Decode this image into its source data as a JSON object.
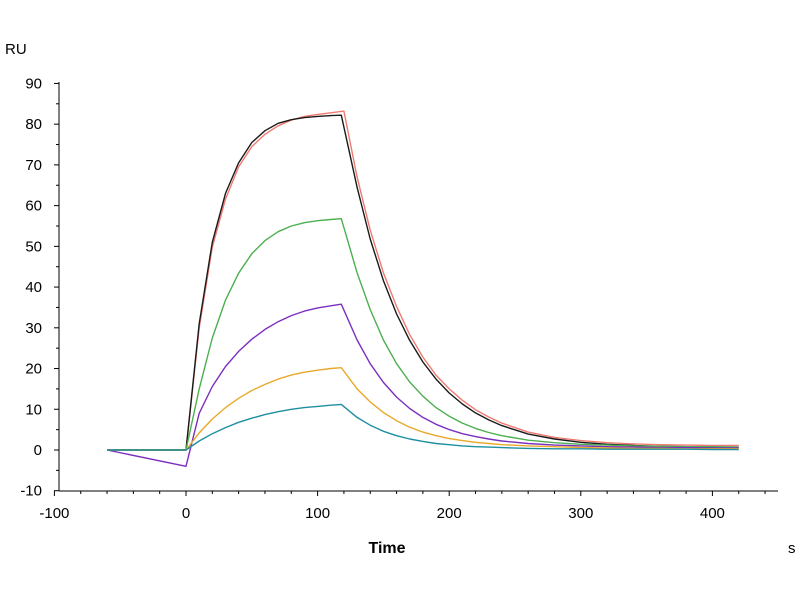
{
  "chart_data": {
    "type": "line",
    "title": "",
    "xlabel": "Time",
    "x_unit": "s",
    "ylabel": "RU",
    "xlim": [
      -100,
      420
    ],
    "ylim": [
      -10,
      90
    ],
    "x_ticks": [
      -100,
      0,
      100,
      200,
      300,
      400
    ],
    "y_ticks": [
      -10,
      0,
      10,
      20,
      30,
      40,
      50,
      60,
      70,
      80,
      90
    ],
    "grid": false,
    "legend": "none",
    "series": [
      {
        "color": "#f07a72",
        "x": [
          -60,
          0,
          10,
          20,
          30,
          40,
          50,
          60,
          70,
          80,
          90,
          100,
          110,
          120,
          130,
          140,
          150,
          160,
          170,
          180,
          190,
          200,
          210,
          220,
          230,
          240,
          260,
          280,
          300,
          320,
          340,
          360,
          380,
          400,
          420
        ],
        "y": [
          0,
          0,
          30,
          49.8,
          61.6,
          69.5,
          74.5,
          77.5,
          79.6,
          81,
          81.9,
          82.4,
          82.8,
          83.2,
          67,
          54,
          43.5,
          35.2,
          28.3,
          22.8,
          18.4,
          15,
          12.2,
          9.9,
          8.1,
          6.6,
          4.4,
          3.1,
          2.3,
          1.8,
          1.5,
          1.3,
          1.2,
          1.1,
          1.1
        ]
      },
      {
        "color": "#1a1a1a",
        "x": [
          -60,
          0,
          10,
          20,
          30,
          40,
          50,
          60,
          70,
          80,
          90,
          100,
          110,
          118,
          130,
          140,
          150,
          160,
          170,
          180,
          190,
          200,
          210,
          220,
          230,
          240,
          260,
          280,
          300,
          320,
          340,
          360,
          380,
          400,
          420
        ],
        "y": [
          0,
          0,
          31,
          51,
          63,
          70.5,
          75.5,
          78.4,
          80.2,
          81.1,
          81.6,
          81.9,
          82.1,
          82.2,
          64.5,
          51.8,
          41.6,
          33.4,
          26.9,
          21.6,
          17.4,
          14,
          11.3,
          9.1,
          7.4,
          6,
          3.9,
          2.7,
          1.9,
          1.4,
          1.1,
          0.9,
          0.8,
          0.7,
          0.6
        ]
      },
      {
        "color": "#4caf50",
        "x": [
          -60,
          0,
          10,
          20,
          30,
          40,
          50,
          60,
          70,
          80,
          90,
          100,
          110,
          118,
          130,
          140,
          150,
          160,
          170,
          180,
          190,
          200,
          210,
          220,
          230,
          240,
          260,
          280,
          300,
          320,
          340,
          360,
          380,
          400,
          420
        ],
        "y": [
          0,
          0,
          15,
          27.5,
          36.8,
          43.4,
          48.2,
          51.4,
          53.6,
          55,
          55.8,
          56.3,
          56.6,
          56.8,
          43.5,
          34.5,
          27,
          21.2,
          16.7,
          13.2,
          10.4,
          8.3,
          6.6,
          5.3,
          4.3,
          3.5,
          2.4,
          1.8,
          1.4,
          1.2,
          1,
          0.9,
          0.8,
          0.8,
          0.7
        ]
      },
      {
        "color": "#7b2fbf",
        "x": [
          -60,
          0,
          10,
          20,
          30,
          40,
          50,
          60,
          70,
          80,
          90,
          100,
          110,
          118,
          130,
          140,
          150,
          160,
          170,
          180,
          190,
          200,
          210,
          220,
          230,
          240,
          260,
          280,
          300,
          320,
          340,
          360,
          380,
          400,
          420
        ],
        "y": [
          0,
          -4,
          9,
          15.6,
          20.5,
          24.2,
          27.2,
          29.6,
          31.5,
          33,
          34.1,
          34.9,
          35.4,
          35.8,
          27,
          21.2,
          16.6,
          13,
          10.2,
          8,
          6.3,
          5,
          4,
          3.3,
          2.7,
          2.2,
          1.6,
          1.2,
          1,
          0.8,
          0.7,
          0.6,
          0.6,
          0.5,
          0.5
        ]
      },
      {
        "color": "#e8a92a",
        "x": [
          -60,
          0,
          10,
          20,
          30,
          40,
          50,
          60,
          70,
          80,
          90,
          100,
          110,
          118,
          130,
          140,
          150,
          160,
          170,
          180,
          190,
          200,
          210,
          220,
          230,
          240,
          260,
          280,
          300,
          320,
          340,
          360,
          380,
          400,
          420
        ],
        "y": [
          0,
          0,
          4.2,
          7.6,
          10.4,
          12.7,
          14.6,
          16.1,
          17.4,
          18.4,
          19.1,
          19.6,
          20,
          20.2,
          15,
          11.8,
          9.2,
          7.2,
          5.6,
          4.4,
          3.5,
          2.8,
          2.3,
          1.9,
          1.6,
          1.3,
          1,
          0.8,
          0.6,
          0.5,
          0.4,
          0.4,
          0.3,
          0.3,
          0.3
        ]
      },
      {
        "color": "#1e8fa0",
        "x": [
          -60,
          0,
          10,
          20,
          30,
          40,
          50,
          60,
          70,
          80,
          90,
          100,
          110,
          118,
          130,
          140,
          150,
          160,
          170,
          180,
          190,
          200,
          210,
          220,
          230,
          240,
          260,
          280,
          300,
          320,
          340,
          360,
          380,
          400,
          420
        ],
        "y": [
          0,
          0,
          2.2,
          4,
          5.5,
          6.8,
          7.8,
          8.7,
          9.4,
          10,
          10.4,
          10.7,
          11,
          11.2,
          8,
          6.1,
          4.6,
          3.5,
          2.7,
          2.1,
          1.6,
          1.3,
          1,
          0.8,
          0.7,
          0.6,
          0.4,
          0.3,
          0.3,
          0.2,
          0.2,
          0.2,
          0.2,
          0.1,
          0.1
        ]
      }
    ]
  }
}
